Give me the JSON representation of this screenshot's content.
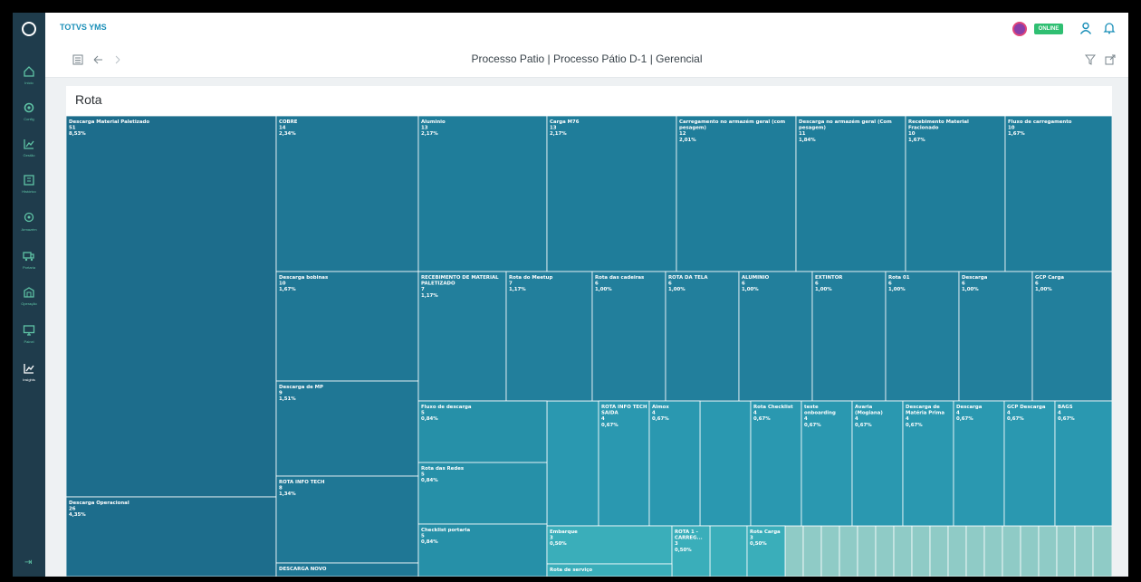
{
  "app": {
    "brand": "TOTVS YMS",
    "status": "ONLINE"
  },
  "sidebar": {
    "items": [
      {
        "label": "Início",
        "icon": "home-icon"
      },
      {
        "label": "Config",
        "icon": "gear-icon"
      },
      {
        "label": "Gestão",
        "icon": "chart-icon"
      },
      {
        "label": "Histórico",
        "icon": "history-icon"
      },
      {
        "label": "Armazém",
        "icon": "location-icon"
      },
      {
        "label": "Portaria",
        "icon": "truck-icon"
      },
      {
        "label": "Operação",
        "icon": "warehouse-icon"
      },
      {
        "label": "Painel",
        "icon": "monitor-icon"
      },
      {
        "label": "Insights",
        "icon": "insights-icon",
        "active": true
      }
    ]
  },
  "toolbar": {
    "breadcrumb": "Processo Patio | Processo Pátio D-1 | Gerencial"
  },
  "panel": {
    "title": "Rota"
  },
  "colors": {
    "sidebar": "#1f3c4c",
    "accent": "#5fc4a6",
    "online": "#2fbf72",
    "brand": "#1a8fb8"
  },
  "chart_data": {
    "type": "treemap",
    "title": "Rota",
    "items": [
      {
        "name": "Descarga Material Paletizado",
        "value": 51,
        "percent": "8,53%"
      },
      {
        "name": "Descarga Operacional",
        "value": 26,
        "percent": "4,35%"
      },
      {
        "name": "COBRE",
        "value": 14,
        "percent": "2,34%"
      },
      {
        "name": "Descarga bobinas",
        "value": 10,
        "percent": "1,67%"
      },
      {
        "name": "Descarga de MP",
        "value": 9,
        "percent": "1,51%"
      },
      {
        "name": "ROTA INFO TECH",
        "value": 8,
        "percent": "1,34%"
      },
      {
        "name": "DESCARGA NOVO",
        "value": null,
        "percent": ""
      },
      {
        "name": "Aluminio",
        "value": 13,
        "percent": "2,17%"
      },
      {
        "name": "Carga M76",
        "value": 13,
        "percent": "2,17%"
      },
      {
        "name": "Carregamento no armazém geral (com pesagem)",
        "value": 12,
        "percent": "2,01%"
      },
      {
        "name": "Descarga no armazém geral (Com pesagem)",
        "value": 11,
        "percent": "1,84%"
      },
      {
        "name": "Recebimento Material Fracionado",
        "value": 10,
        "percent": "1,67%"
      },
      {
        "name": "Fluxo de carregamento",
        "value": 10,
        "percent": "1,67%"
      },
      {
        "name": "RECEBIMENTO DE MATERIAL PALETIZADO",
        "value": 7,
        "percent": "1,17%"
      },
      {
        "name": "Rota do Meetup",
        "value": 7,
        "percent": "1,17%"
      },
      {
        "name": "Rota das cadeiras",
        "value": 6,
        "percent": "1,00%"
      },
      {
        "name": "ROTA DA TELA",
        "value": 6,
        "percent": "1,00%"
      },
      {
        "name": "ALUMINIO",
        "value": 6,
        "percent": "1,00%"
      },
      {
        "name": "EXTINTOR",
        "value": 6,
        "percent": "1,00%"
      },
      {
        "name": "Rota 01",
        "value": 6,
        "percent": "1,00%"
      },
      {
        "name": "Descarga",
        "value": 6,
        "percent": "1,00%"
      },
      {
        "name": "GCP Carga",
        "value": 6,
        "percent": "1,00%"
      },
      {
        "name": "Fluxo de descarga",
        "value": 5,
        "percent": "0,84%"
      },
      {
        "name": "Rota das Redes",
        "value": 5,
        "percent": "0,84%"
      },
      {
        "name": "Checklist portaria",
        "value": 5,
        "percent": "0,84%"
      },
      {
        "name": "ROTA INFO TECH SAIDA",
        "value": 4,
        "percent": "0,67%"
      },
      {
        "name": "Almox",
        "value": 4,
        "percent": "0,67%"
      },
      {
        "name": "Rota Checklist",
        "value": 4,
        "percent": "0,67%"
      },
      {
        "name": "teste onboarding",
        "value": 4,
        "percent": "0,67%"
      },
      {
        "name": "Avaria (Mogiana)",
        "value": 4,
        "percent": "0,67%"
      },
      {
        "name": "Descarga de Matéria Prima",
        "value": 4,
        "percent": "0,67%"
      },
      {
        "name": "Descarga",
        "value": 4,
        "percent": "0,67%"
      },
      {
        "name": "GCP Descarga",
        "value": 4,
        "percent": "0,67%"
      },
      {
        "name": "BAGS",
        "value": 4,
        "percent": "0,67%"
      },
      {
        "name": "Embarque",
        "value": 3,
        "percent": "0,50%"
      },
      {
        "name": "ROTA 1 - CARREG...",
        "value": 3,
        "percent": "0,50%"
      },
      {
        "name": "Rota Carga",
        "value": 3,
        "percent": "0,50%"
      },
      {
        "name": "Rota de serviço",
        "value": null,
        "percent": ""
      }
    ]
  }
}
